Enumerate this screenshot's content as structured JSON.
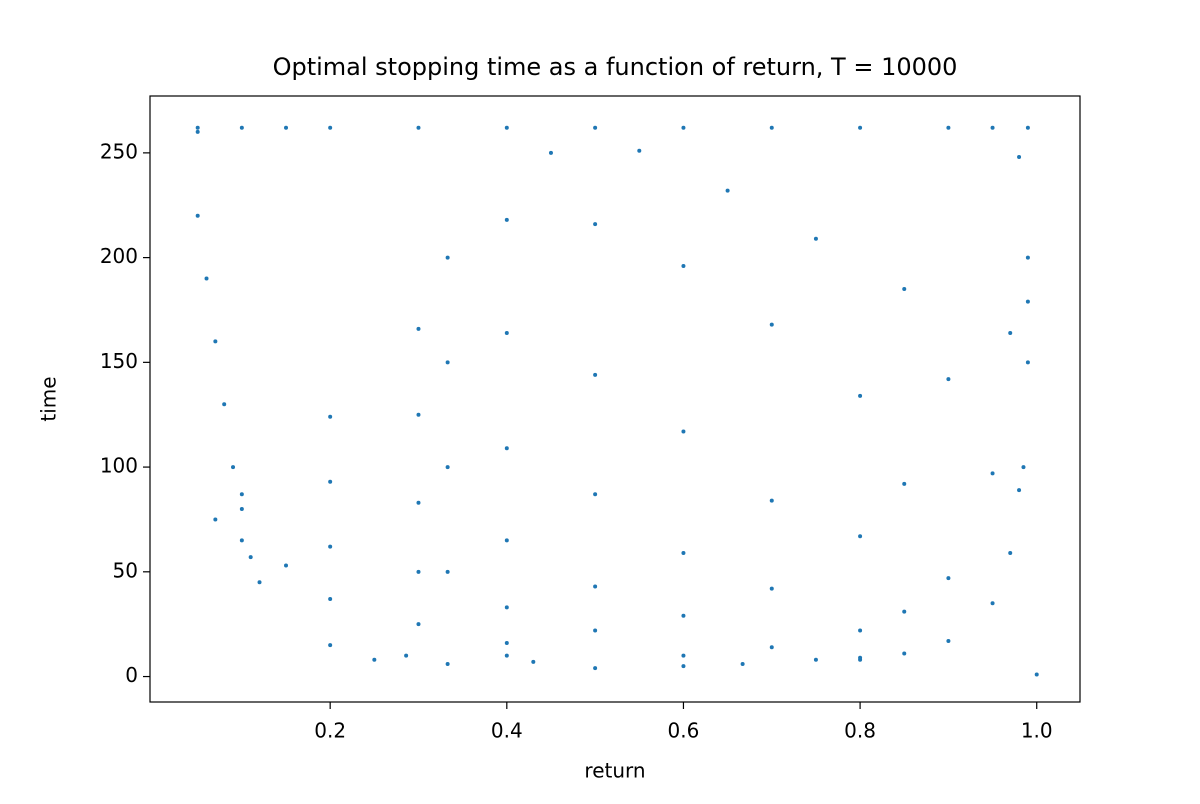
{
  "chart_data": {
    "type": "scatter",
    "title": "Optimal stopping time as a function of return, T = 10000",
    "x_label": "return",
    "y_label": "time",
    "color": "#1f77b4",
    "xlim": [
      -0.004,
      1.049
    ],
    "ylim": [
      -12.15,
      277.15
    ],
    "xticks": [
      0.2,
      0.4,
      0.6,
      0.8,
      {
        "value": 1,
        "label": "1.0"
      }
    ],
    "yticks": [
      0,
      50,
      100,
      150,
      200,
      250
    ],
    "x": [
      0.99,
      0.98,
      0.97,
      0.95,
      0.9,
      0.85,
      0.8,
      0.98,
      0.97,
      0.95,
      0.9,
      0.85,
      0.8,
      0.7,
      0.6,
      0.9,
      0.85,
      0.8,
      0.7,
      0.6,
      0.5,
      0.4,
      0.85,
      0.8,
      0.7,
      0.6,
      0.5,
      0.4,
      0.3,
      0.75,
      0.7,
      0.6,
      0.5,
      0.4,
      0.3,
      0.2,
      0.65,
      0.6,
      0.5,
      0.4,
      0.3,
      0.2,
      0.15,
      0.55,
      0.5,
      0.4,
      0.3,
      0.2,
      0.1,
      0.45,
      0.4,
      0.3,
      0.2,
      0.1,
      0.07,
      0.25,
      0.2,
      0.333,
      0.4,
      0.5,
      0.6,
      0.667,
      0.75,
      1.0,
      0.286,
      0.43,
      0.8,
      0.05,
      0.1,
      0.15,
      0.2,
      0.3,
      0.4,
      0.5,
      0.6,
      0.7,
      0.8,
      0.9,
      0.95,
      0.05,
      0.05,
      0.06,
      0.07,
      0.08,
      0.09,
      0.1,
      0.11,
      0.12,
      0.99,
      0.99,
      0.99,
      0.985,
      0.333,
      0.333,
      0.333,
      0.333
    ],
    "y": [
      179,
      89,
      59,
      35,
      17,
      11,
      8,
      248,
      164,
      97,
      47,
      31,
      22,
      14,
      10,
      142,
      92,
      67,
      42,
      29,
      22,
      16,
      185,
      134,
      84,
      59,
      43,
      33,
      25,
      209,
      168,
      117,
      87,
      65,
      50,
      37,
      232,
      196,
      144,
      109,
      83,
      62,
      53,
      251,
      216,
      164,
      125,
      93,
      65,
      250,
      218,
      166,
      124,
      87,
      75,
      8,
      15,
      6,
      10,
      4,
      5,
      6,
      8,
      1,
      10,
      7,
      9,
      262,
      262,
      262,
      262,
      262,
      262,
      262,
      262,
      262,
      262,
      262,
      262,
      260,
      220,
      190,
      160,
      130,
      100,
      80,
      57,
      45,
      262,
      200,
      150,
      100,
      50,
      100,
      150,
      200
    ]
  }
}
